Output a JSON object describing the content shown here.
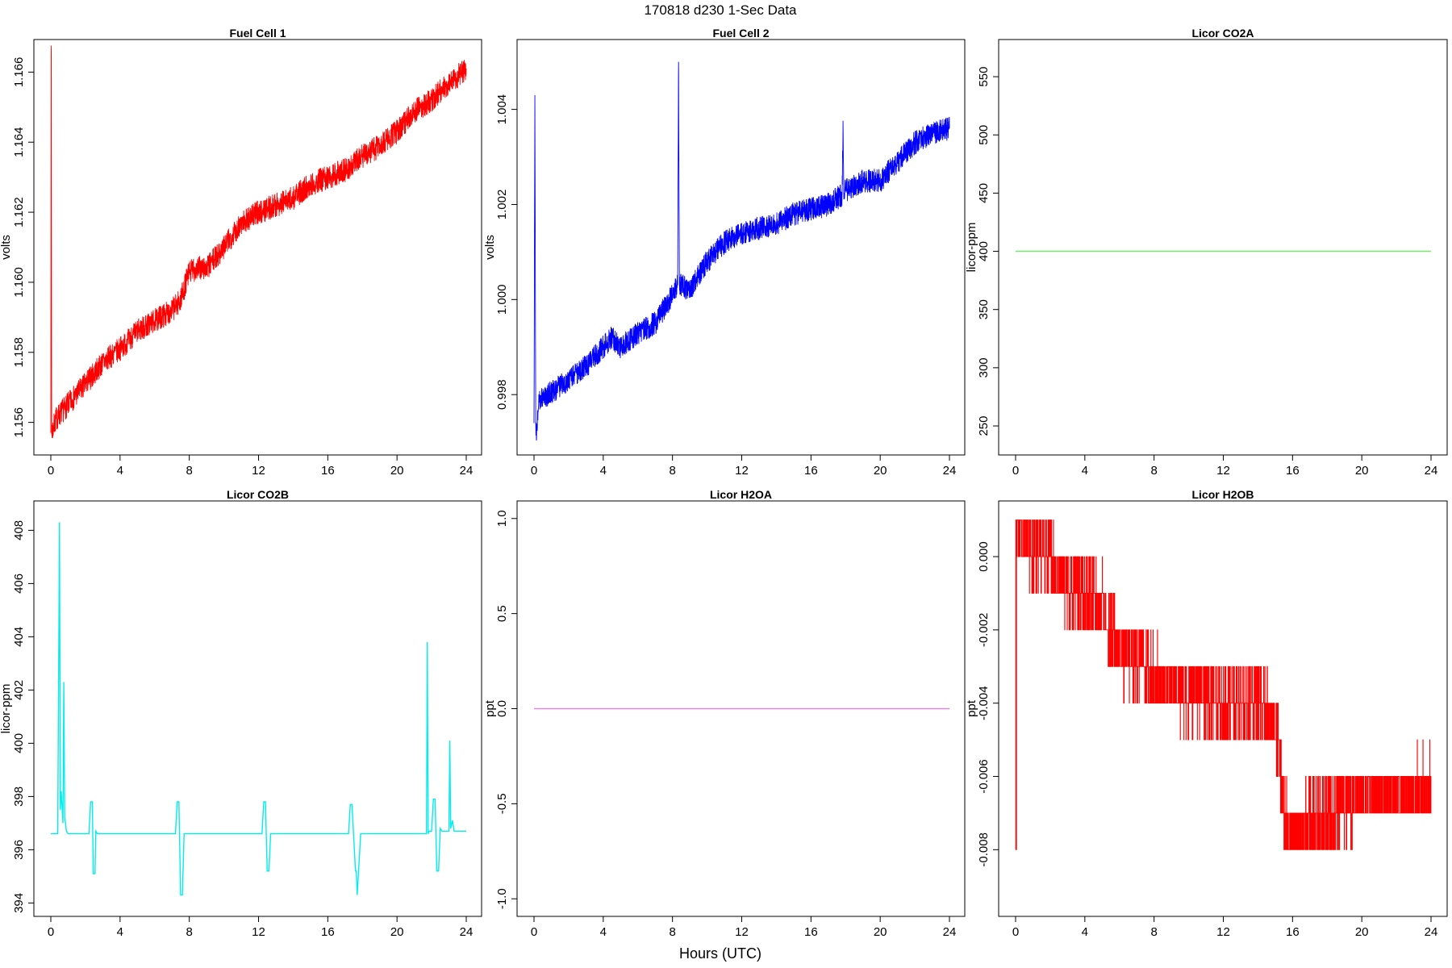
{
  "figure": {
    "title": "170818   d230   1-Sec Data",
    "xlabel": "Hours (UTC)"
  },
  "chart_data": [
    {
      "type": "line",
      "title": "Fuel Cell 1",
      "ylabel": "volts",
      "color": "#ff0000",
      "xlim": [
        0,
        24
      ],
      "ylim": [
        1.1553,
        1.1667
      ],
      "xticks": [
        0,
        4,
        8,
        12,
        16,
        20,
        24
      ],
      "yticks": [
        1.156,
        1.158,
        1.16,
        1.162,
        1.164,
        1.166
      ],
      "ytick_labels": [
        "1.156",
        "1.158",
        "1.160",
        "1.162",
        "1.164",
        "1.166"
      ],
      "noise": 0.00035,
      "x": [
        0,
        0.02,
        0.03,
        0.05,
        0.3,
        0.8,
        2,
        3,
        4,
        5,
        6,
        7,
        7.5,
        8,
        8.5,
        9,
        10,
        11,
        12,
        13,
        14,
        15,
        16,
        17,
        18,
        19,
        20,
        21,
        22,
        23,
        24
      ],
      "y": [
        1.1557,
        1.1665,
        1.1664,
        1.1557,
        1.1561,
        1.1564,
        1.1571,
        1.1577,
        1.1581,
        1.1586,
        1.1589,
        1.1592,
        1.1595,
        1.1603,
        1.1604,
        1.1604,
        1.161,
        1.1617,
        1.162,
        1.1622,
        1.1624,
        1.1628,
        1.163,
        1.1632,
        1.1636,
        1.1639,
        1.1643,
        1.1649,
        1.1652,
        1.1657,
        1.1661
      ]
    },
    {
      "type": "line",
      "title": "Fuel Cell 2",
      "ylabel": "volts",
      "color": "#0000ff",
      "xlim": [
        0,
        24
      ],
      "ylim": [
        0.9969,
        1.0053
      ],
      "xticks": [
        0,
        4,
        8,
        12,
        16,
        20,
        24
      ],
      "yticks": [
        0.998,
        1.0,
        1.002,
        1.004
      ],
      "ytick_labels": [
        "0.998",
        "1.000",
        "1.002",
        "1.004"
      ],
      "noise": 0.00025,
      "x": [
        0,
        0.05,
        0.1,
        0.15,
        0.3,
        0.8,
        2,
        3,
        4,
        4.5,
        5,
        6,
        7,
        8,
        8.3,
        8.35,
        8.4,
        8.5,
        9,
        10,
        11,
        12,
        13,
        14,
        15,
        16,
        17,
        17.8,
        17.85,
        17.9,
        18,
        19,
        20,
        21,
        22,
        23,
        24
      ],
      "y": [
        0.9974,
        1.0043,
        0.9974,
        0.9972,
        0.9979,
        0.998,
        0.9983,
        0.9986,
        0.999,
        0.9992,
        0.999,
        0.9993,
        0.9995,
        1.0001,
        1.0003,
        1.005,
        1.0003,
        1.0003,
        1.0002,
        1.0008,
        1.0012,
        1.0014,
        1.0015,
        1.0016,
        1.0018,
        1.0019,
        1.002,
        1.0022,
        1.0036,
        1.0022,
        1.0023,
        1.0025,
        1.0025,
        1.0029,
        1.0033,
        1.0035,
        1.0036
      ]
    },
    {
      "type": "line",
      "title": "Licor CO2A",
      "ylabel": "licor-ppm",
      "color": "#66ee66",
      "xlim": [
        0,
        24
      ],
      "ylim": [
        232,
        575
      ],
      "xticks": [
        0,
        4,
        8,
        12,
        16,
        20,
        24
      ],
      "yticks": [
        250,
        300,
        350,
        400,
        450,
        500,
        550
      ],
      "ytick_labels": [
        "250",
        "300",
        "350",
        "400",
        "450",
        "500",
        "550"
      ],
      "noise": 0,
      "x": [
        0,
        24
      ],
      "y": [
        400,
        400
      ]
    },
    {
      "type": "line",
      "title": "Licor CO2B",
      "ylabel": "licor-ppm",
      "color": "#00eeee",
      "xlim": [
        0,
        24
      ],
      "ylim": [
        393.8,
        408.8
      ],
      "xticks": [
        0,
        4,
        8,
        12,
        16,
        20,
        24
      ],
      "yticks": [
        394,
        396,
        398,
        400,
        402,
        404,
        406,
        408
      ],
      "ytick_labels": [
        "394",
        "396",
        "398",
        "400",
        "402",
        "404",
        "406",
        "408"
      ],
      "noise": 0,
      "x": [
        0,
        0.4,
        0.5,
        0.55,
        0.6,
        0.7,
        0.75,
        0.8,
        0.85,
        0.9,
        1.0,
        2.2,
        2.3,
        2.4,
        2.45,
        2.55,
        2.6,
        2.7,
        3,
        7.2,
        7.3,
        7.4,
        7.5,
        7.6,
        7.7,
        7.8,
        8,
        12.2,
        12.3,
        12.4,
        12.5,
        12.6,
        12.7,
        17.2,
        17.3,
        17.4,
        17.6,
        17.65,
        17.7,
        17.9,
        18,
        21.7,
        21.75,
        21.8,
        21.85,
        21.9,
        22,
        22.1,
        22.2,
        22.3,
        22.4,
        22.5,
        22.6,
        22.7,
        23,
        23.05,
        23.1,
        23.2,
        23.3,
        24
      ],
      "y": [
        396.6,
        396.6,
        408.3,
        397.5,
        398.2,
        397.0,
        402.3,
        397.2,
        397.0,
        396.7,
        396.6,
        396.6,
        397.8,
        397.8,
        395.1,
        395.1,
        396.7,
        396.6,
        396.6,
        396.6,
        397.8,
        397.8,
        394.3,
        394.3,
        396.6,
        396.6,
        396.6,
        396.6,
        397.8,
        397.8,
        395.2,
        395.2,
        396.6,
        396.6,
        397.7,
        397.7,
        395.2,
        395.2,
        394.3,
        396.6,
        396.6,
        396.6,
        403.8,
        396.6,
        396.7,
        396.7,
        396.7,
        397.9,
        397.9,
        395.2,
        395.2,
        396.8,
        396.7,
        396.7,
        396.7,
        400.1,
        396.8,
        397.1,
        396.7,
        396.7
      ]
    },
    {
      "type": "line",
      "title": "Licor H2OA",
      "ylabel": "ppt",
      "color": "#dd88dd",
      "xlim": [
        0,
        24
      ],
      "ylim": [
        -1.05,
        1.05
      ],
      "xticks": [
        0,
        4,
        8,
        12,
        16,
        20,
        24
      ],
      "yticks": [
        -1.0,
        -0.5,
        0.0,
        0.5,
        1.0
      ],
      "ytick_labels": [
        "-1.0",
        "-0.5",
        "0.0",
        "0.5",
        "1.0"
      ],
      "noise": 0,
      "x": [
        0,
        24
      ],
      "y": [
        0,
        0
      ]
    },
    {
      "type": "line",
      "title": "Licor H2OB",
      "ylabel": "ppt",
      "color": "#ff0000",
      "xlim": [
        0,
        24
      ],
      "ylim": [
        -0.0096,
        0.0013
      ],
      "xticks": [
        0,
        4,
        8,
        12,
        16,
        20,
        24
      ],
      "yticks": [
        -0.008,
        -0.006,
        -0.004,
        -0.002,
        0.0
      ],
      "ytick_labels": [
        "-0.008",
        "-0.006",
        "-0.004",
        "-0.002",
        "0.000"
      ],
      "quantized": true,
      "step": 0.001,
      "x": [
        0,
        2,
        3,
        5,
        6,
        8,
        10,
        12,
        14,
        15,
        15.5,
        16,
        18,
        20,
        24
      ],
      "y": [
        0.0005,
        0.0,
        -0.0008,
        -0.0013,
        -0.0025,
        -0.0033,
        -0.0037,
        -0.004,
        -0.0039,
        -0.0045,
        -0.007,
        -0.0075,
        -0.0071,
        -0.0065,
        -0.0064
      ]
    }
  ]
}
